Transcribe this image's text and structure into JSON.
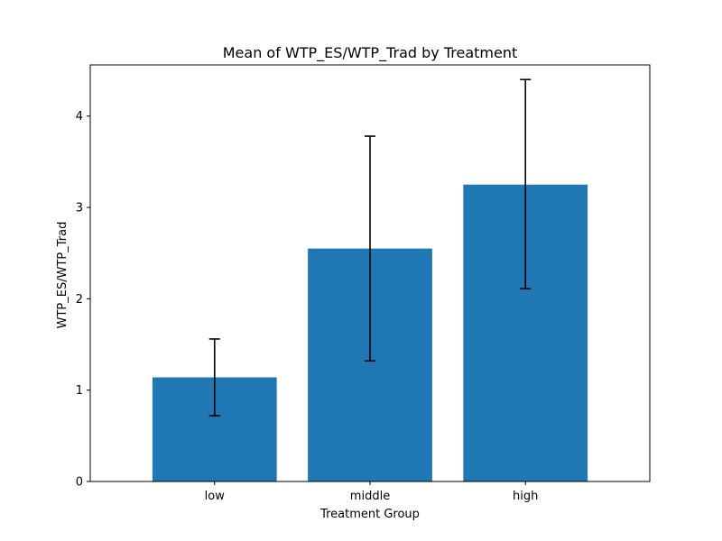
{
  "chart_data": {
    "type": "bar",
    "title": "Mean of WTP_ES/WTP_Trad by Treatment",
    "xlabel": "Treatment Group",
    "ylabel": "WTP_ES/WTP_Trad",
    "categories": [
      "low",
      "middle",
      "high"
    ],
    "values": [
      1.14,
      2.55,
      3.25
    ],
    "error_bars": {
      "lower": [
        0.72,
        1.32,
        2.11
      ],
      "upper": [
        1.56,
        3.78,
        4.4
      ]
    },
    "ylim": [
      0,
      4.56
    ],
    "yticks": [
      0,
      1,
      2,
      3,
      4
    ],
    "grid": false,
    "bar_color": "#1f77b4",
    "error_color": "#000000"
  }
}
